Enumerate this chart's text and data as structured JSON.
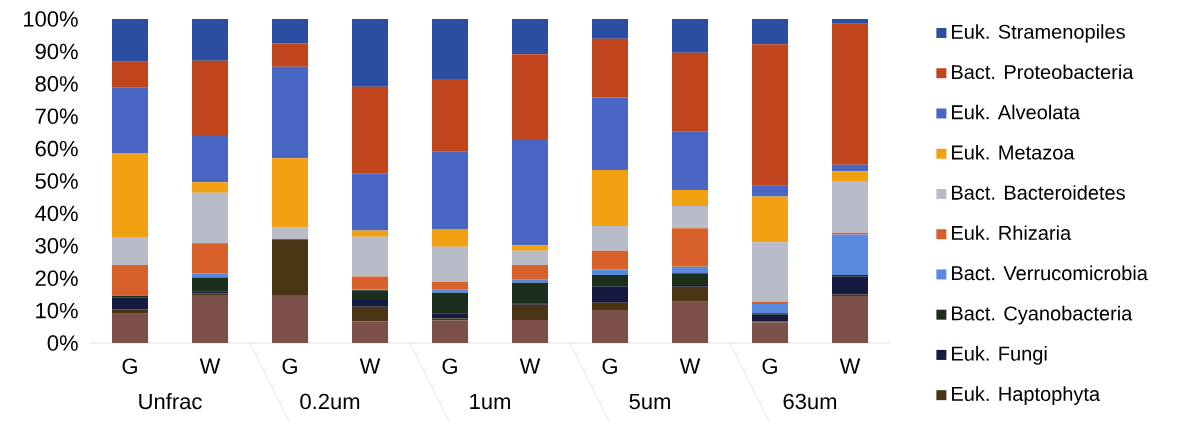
{
  "chart_data": {
    "type": "bar",
    "stacked": true,
    "categories": [
      "G",
      "W",
      "G",
      "W",
      "G",
      "W",
      "G",
      "W",
      "G",
      "W"
    ],
    "annotations": [
      "Unfrac",
      "0.2um",
      "1um",
      "5um",
      "63um"
    ],
    "ylim": [
      0,
      100
    ],
    "yticks": [
      {
        "value": 0,
        "label": "0%"
      },
      {
        "value": 10,
        "label": "10%"
      },
      {
        "value": 20,
        "label": "20%"
      },
      {
        "value": 30,
        "label": "30%"
      },
      {
        "value": 40,
        "label": "40%"
      },
      {
        "value": 50,
        "label": "50%"
      },
      {
        "value": 60,
        "label": "60%"
      },
      {
        "value": 70,
        "label": "70%"
      },
      {
        "value": 80,
        "label": "80%"
      },
      {
        "value": 90,
        "label": "90%"
      },
      {
        "value": 100,
        "label": "100%"
      }
    ],
    "legend": "right",
    "series": [
      {
        "color": "#7a5048",
        "values": [
          9.0,
          14.8,
          14.8,
          6.6,
          7.0,
          7.1,
          10.2,
          12.7,
          6.3,
          14.5
        ]
      },
      {
        "name": "Euk. Haptophyta",
        "color": "#4a3414",
        "values": [
          1.4,
          0.5,
          17.2,
          4.6,
          0.6,
          4.7,
          2.2,
          4.7,
          0.3,
          0.5
        ]
      },
      {
        "name": "Euk. Fungi",
        "color": "#141a40",
        "values": [
          3.6,
          0.5,
          0,
          2.1,
          1.6,
          0.5,
          5.0,
          0.5,
          2.1,
          5.5
        ]
      },
      {
        "name": "Bact. Cyanobacteria",
        "color": "#1c2e1c",
        "values": [
          0.5,
          4.4,
          0,
          3.0,
          6.3,
          6.3,
          3.6,
          3.6,
          0.5,
          0.5
        ]
      },
      {
        "name": "Bact. Verrucomicrobia",
        "color": "#5a8ae0",
        "values": [
          0.3,
          1.3,
          0,
          0.3,
          1.1,
          1.1,
          1.7,
          2.0,
          2.8,
          12.5
        ]
      },
      {
        "name": "Euk. Rhizaria",
        "color": "#d8602a",
        "values": [
          9.3,
          9.3,
          0,
          3.9,
          2.3,
          4.4,
          5.8,
          11.9,
          0.7,
          0.5
        ]
      },
      {
        "name": "Bact. Bacteroidetes",
        "color": "#b8bcc8",
        "values": [
          8.4,
          15.6,
          3.7,
          12.3,
          10.8,
          4.4,
          7.6,
          6.9,
          18.4,
          16.0
        ]
      },
      {
        "name": "Euk. Metazoa",
        "color": "#f0a010",
        "values": [
          26.0,
          3.2,
          21.3,
          1.9,
          5.5,
          1.7,
          17.3,
          4.9,
          14.1,
          3.0
        ]
      },
      {
        "name": "Euk. Alveolata",
        "color": "#4a66c4",
        "values": [
          20.3,
          14.3,
          28.3,
          17.5,
          23.8,
          32.8,
          22.4,
          18.0,
          3.3,
          2.0
        ]
      },
      {
        "name": "Bact. Proteobacteria",
        "color": "#c0441c",
        "values": [
          8.0,
          23.2,
          7.2,
          26.9,
          22.5,
          26.1,
          18.1,
          24.4,
          43.7,
          43.5
        ]
      },
      {
        "name": "Euk. Stramenopiles",
        "color": "#2b4ea2",
        "values": [
          13.2,
          12.9,
          7.5,
          20.9,
          18.5,
          10.9,
          6.1,
          10.4,
          7.8,
          1.5
        ]
      }
    ]
  }
}
